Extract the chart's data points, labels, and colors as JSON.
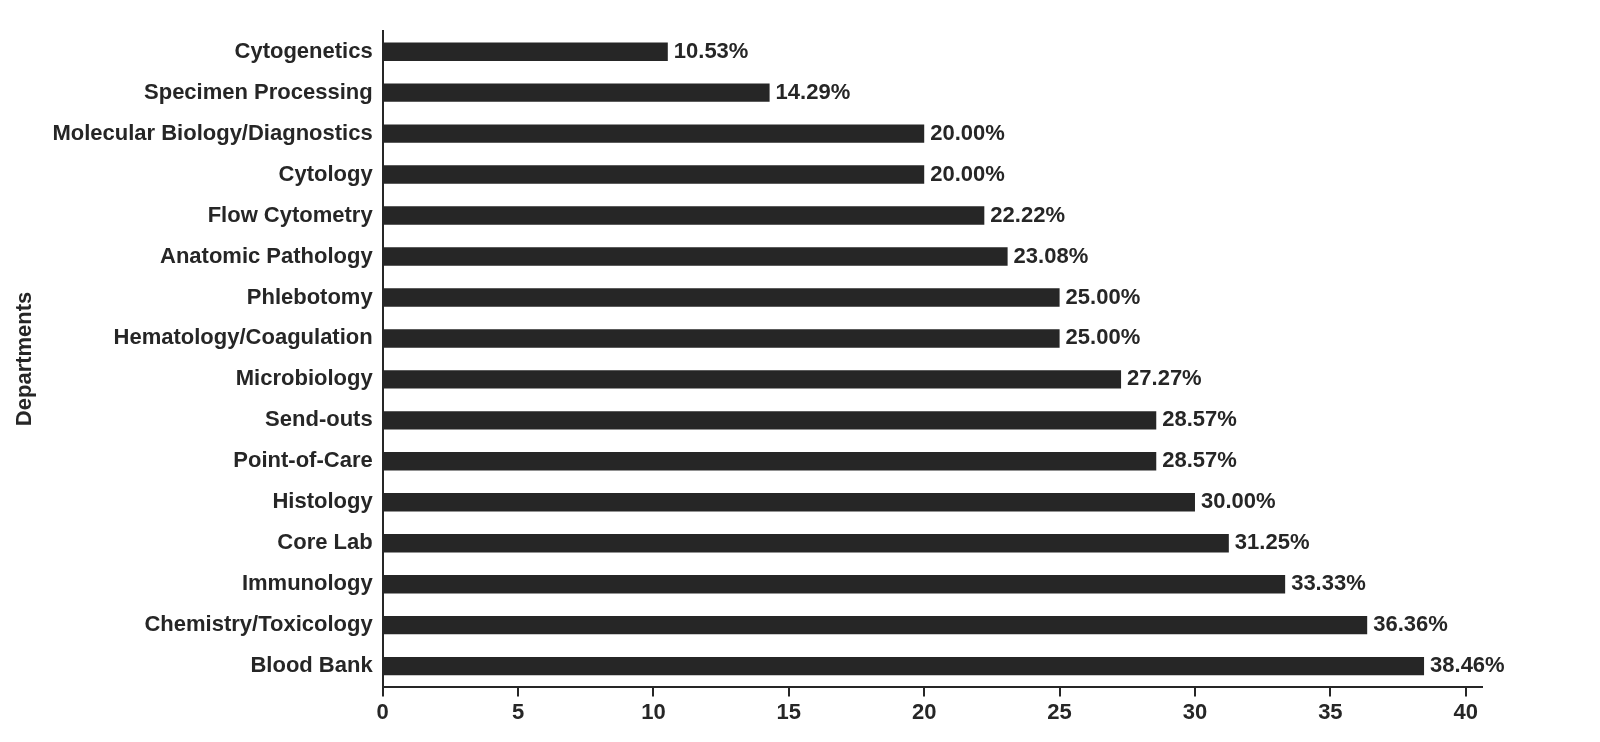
{
  "chart_data": {
    "type": "bar",
    "orientation": "horizontal",
    "ylabel": "Departments",
    "categories": [
      "Cytogenetics",
      "Specimen Processing",
      "Molecular Biology/Diagnostics",
      "Cytology",
      "Flow Cytometry",
      "Anatomic Pathology",
      "Phlebotomy",
      "Hematology/Coagulation",
      "Microbiology",
      "Send-outs",
      "Point-of-Care",
      "Histology",
      "Core Lab",
      "Immunology",
      "Chemistry/Toxicology",
      "Blood Bank"
    ],
    "values": [
      10.53,
      14.29,
      20.0,
      20.0,
      22.22,
      23.08,
      25.0,
      25.0,
      27.27,
      28.57,
      28.57,
      30.0,
      31.25,
      33.33,
      36.36,
      38.46
    ],
    "value_labels": [
      "10.53%",
      "14.29%",
      "20.00%",
      "20.00%",
      "22.22%",
      "23.08%",
      "25.00%",
      "25.00%",
      "27.27%",
      "28.57%",
      "28.57%",
      "30.00%",
      "31.25%",
      "33.33%",
      "36.36%",
      "38.46%"
    ],
    "color": "#262626",
    "xlim": [
      0,
      40.6
    ],
    "xticks": [
      0,
      5,
      10,
      15,
      20,
      25,
      30,
      35,
      40
    ],
    "grid": false,
    "legend": false
  }
}
